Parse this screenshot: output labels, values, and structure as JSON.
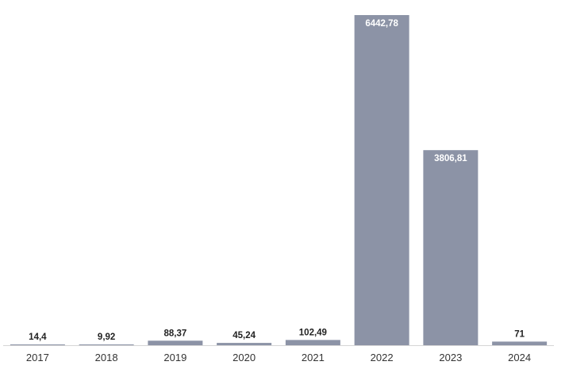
{
  "chart_data": {
    "type": "bar",
    "title": "",
    "xlabel": "",
    "ylabel": "",
    "categories": [
      "2017",
      "2018",
      "2019",
      "2020",
      "2021",
      "2022",
      "2023",
      "2024"
    ],
    "values": [
      14.4,
      9.92,
      88.37,
      45.24,
      102.49,
      6442.78,
      3806.81,
      71
    ],
    "value_labels": [
      "14,4",
      "9,92",
      "88,37",
      "45,24",
      "102,49",
      "6442,78",
      "3806,81",
      "71"
    ],
    "ylim": [
      0,
      6442.78
    ],
    "grid": false,
    "legend": "none",
    "colors": {
      "bar": "#8c93a6",
      "label_outside": "#222222",
      "label_inside": "#ffffff",
      "axis": "#d6d6d6"
    }
  }
}
